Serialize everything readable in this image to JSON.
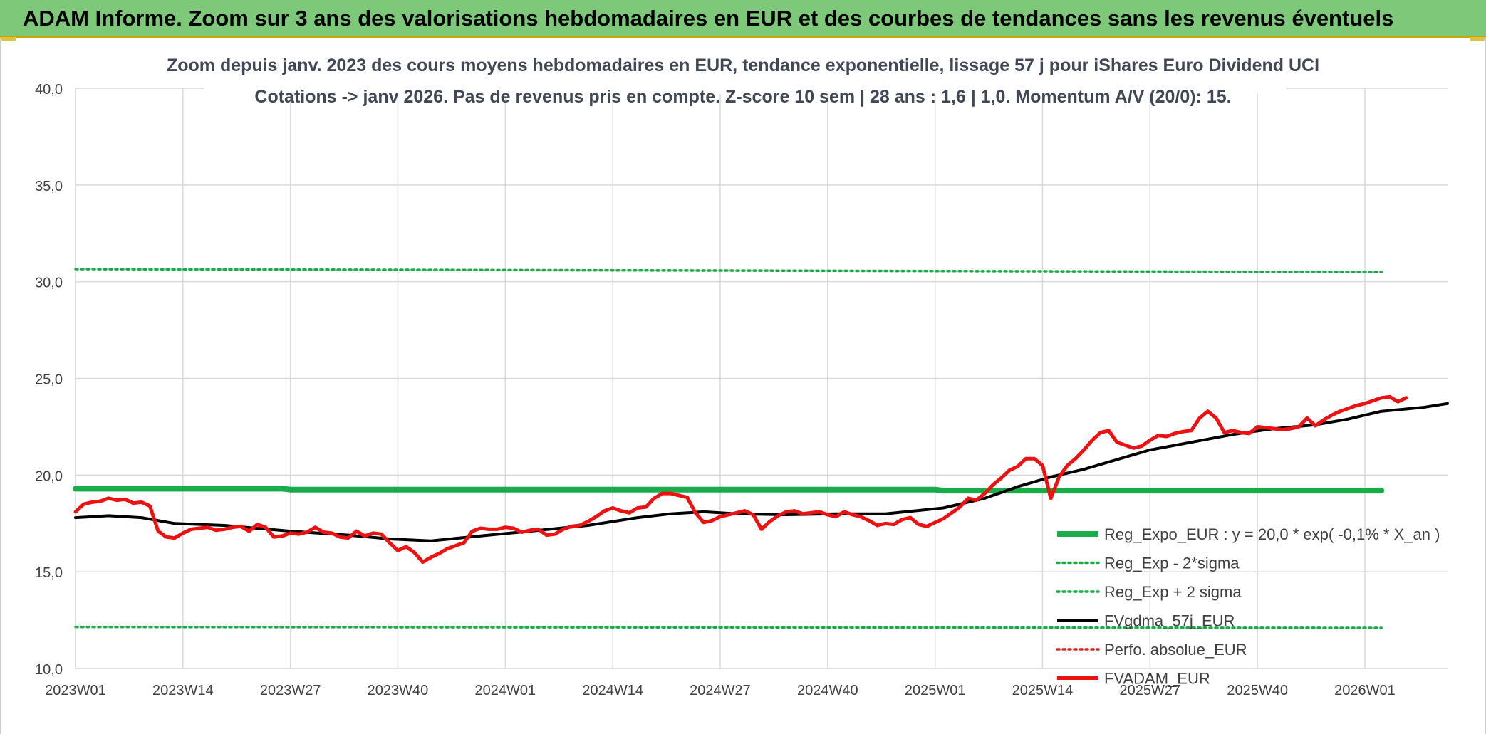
{
  "header": {
    "title": "ADAM Informe. Zoom sur 3 ans des valorisations hebdomadaires en EUR et des courbes de tendances sans les revenus éventuels"
  },
  "chart_data": {
    "type": "line",
    "title": "Zoom depuis janv. 2023 des cours moyens hebdomadaires en EUR, tendance exponentielle, lissage 57 j pour iShares Euro Dividend UCI",
    "subtitle": "Cotations -> janv 2026. Pas de revenus pris en compte. Z-score 10 sem | 28 ans : 1,6 | 1,0. Momentum A/V (20/0): 15.",
    "ylim": [
      10,
      40
    ],
    "yticks": [
      "10,0",
      "15,0",
      "20,0",
      "25,0",
      "30,0",
      "35,0",
      "40,0"
    ],
    "xticks": [
      "2023W01",
      "2023W14",
      "2023W27",
      "2023W40",
      "2024W01",
      "2024W14",
      "2024W27",
      "2024W40",
      "2025W01",
      "2025W14",
      "2025W27",
      "2025W40",
      "2026W01"
    ],
    "grid": true,
    "legend_position": "bottom-right",
    "colors": {
      "reg": "#1aab4a",
      "sigma": "#1aab4a",
      "gdma": "#000000",
      "perf": "#e02020",
      "adam": "#ee1111"
    },
    "series": [
      {
        "name": "Reg_Expo_EUR : y = 20,0 * exp( -0,1% * X_an )",
        "style": "thick",
        "color": "#1aab4a",
        "points": [
          [
            0,
            19.3
          ],
          [
            25,
            19.3
          ],
          [
            26,
            19.25
          ],
          [
            104,
            19.25
          ],
          [
            105,
            19.2
          ],
          [
            158,
            19.2
          ]
        ]
      },
      {
        "name": "Reg_Exp - 2*sigma",
        "style": "dotted",
        "color": "#1aab4a",
        "points": [
          [
            0,
            12.15
          ],
          [
            158,
            12.1
          ]
        ]
      },
      {
        "name": "Reg_Exp + 2 sigma",
        "style": "dotted",
        "color": "#1aab4a",
        "points": [
          [
            0,
            30.65
          ],
          [
            158,
            30.5
          ]
        ]
      },
      {
        "name": "FVgdma_57j_EUR",
        "style": "solid",
        "color": "#000000",
        "points": [
          [
            0,
            17.8
          ],
          [
            4,
            17.9
          ],
          [
            8,
            17.8
          ],
          [
            12,
            17.5
          ],
          [
            18,
            17.4
          ],
          [
            26,
            17.1
          ],
          [
            33,
            16.9
          ],
          [
            38,
            16.7
          ],
          [
            43,
            16.6
          ],
          [
            50,
            16.9
          ],
          [
            55,
            17.1
          ],
          [
            62,
            17.4
          ],
          [
            68,
            17.8
          ],
          [
            72,
            18.0
          ],
          [
            76,
            18.1
          ],
          [
            80,
            18.0
          ],
          [
            86,
            17.95
          ],
          [
            92,
            18.0
          ],
          [
            98,
            18.0
          ],
          [
            105,
            18.3
          ],
          [
            110,
            18.8
          ],
          [
            114,
            19.4
          ],
          [
            118,
            19.9
          ],
          [
            122,
            20.3
          ],
          [
            126,
            20.8
          ],
          [
            130,
            21.3
          ],
          [
            135,
            21.7
          ],
          [
            140,
            22.1
          ],
          [
            145,
            22.4
          ],
          [
            150,
            22.6
          ],
          [
            154,
            22.9
          ],
          [
            158,
            23.3
          ],
          [
            163,
            23.5
          ],
          [
            166,
            23.7
          ]
        ]
      },
      {
        "name": "Perfo. absolue_EUR",
        "style": "dotted",
        "color": "#e02020",
        "points": []
      },
      {
        "name": "FVADAM_EUR",
        "style": "solid",
        "color": "#ee1111",
        "points": [
          [
            0,
            18.1
          ],
          [
            1,
            18.5
          ],
          [
            2,
            18.6
          ],
          [
            3,
            18.65
          ],
          [
            4,
            18.8
          ],
          [
            5,
            18.7
          ],
          [
            6,
            18.75
          ],
          [
            7,
            18.55
          ],
          [
            8,
            18.6
          ],
          [
            9,
            18.4
          ],
          [
            10,
            17.1
          ],
          [
            11,
            16.8
          ],
          [
            12,
            16.75
          ],
          [
            13,
            17.0
          ],
          [
            14,
            17.2
          ],
          [
            15,
            17.25
          ],
          [
            16,
            17.3
          ],
          [
            17,
            17.15
          ],
          [
            18,
            17.2
          ],
          [
            19,
            17.3
          ],
          [
            20,
            17.35
          ],
          [
            21,
            17.1
          ],
          [
            22,
            17.45
          ],
          [
            23,
            17.3
          ],
          [
            24,
            16.8
          ],
          [
            25,
            16.85
          ],
          [
            26,
            17.0
          ],
          [
            27,
            16.95
          ],
          [
            28,
            17.05
          ],
          [
            29,
            17.3
          ],
          [
            30,
            17.05
          ],
          [
            31,
            17.0
          ],
          [
            32,
            16.8
          ],
          [
            33,
            16.75
          ],
          [
            34,
            17.1
          ],
          [
            35,
            16.85
          ],
          [
            36,
            17.0
          ],
          [
            37,
            16.95
          ],
          [
            38,
            16.5
          ],
          [
            39,
            16.1
          ],
          [
            40,
            16.3
          ],
          [
            41,
            16.0
          ],
          [
            42,
            15.5
          ],
          [
            43,
            15.75
          ],
          [
            44,
            15.95
          ],
          [
            45,
            16.2
          ],
          [
            46,
            16.35
          ],
          [
            47,
            16.5
          ],
          [
            48,
            17.1
          ],
          [
            49,
            17.25
          ],
          [
            50,
            17.2
          ],
          [
            51,
            17.2
          ],
          [
            52,
            17.3
          ],
          [
            53,
            17.25
          ],
          [
            54,
            17.05
          ],
          [
            55,
            17.15
          ],
          [
            56,
            17.2
          ],
          [
            57,
            16.9
          ],
          [
            58,
            16.95
          ],
          [
            59,
            17.2
          ],
          [
            60,
            17.35
          ],
          [
            61,
            17.4
          ],
          [
            62,
            17.6
          ],
          [
            63,
            17.85
          ],
          [
            64,
            18.15
          ],
          [
            65,
            18.3
          ],
          [
            66,
            18.15
          ],
          [
            67,
            18.05
          ],
          [
            68,
            18.3
          ],
          [
            69,
            18.35
          ],
          [
            70,
            18.8
          ],
          [
            71,
            19.05
          ],
          [
            72,
            19.05
          ],
          [
            73,
            18.95
          ],
          [
            74,
            18.85
          ],
          [
            75,
            18.05
          ],
          [
            76,
            17.55
          ],
          [
            77,
            17.65
          ],
          [
            78,
            17.85
          ],
          [
            79,
            17.95
          ],
          [
            80,
            18.05
          ],
          [
            81,
            18.15
          ],
          [
            82,
            17.95
          ],
          [
            83,
            17.2
          ],
          [
            84,
            17.6
          ],
          [
            85,
            17.9
          ],
          [
            86,
            18.1
          ],
          [
            87,
            18.15
          ],
          [
            88,
            18.0
          ],
          [
            89,
            18.05
          ],
          [
            90,
            18.1
          ],
          [
            91,
            17.95
          ],
          [
            92,
            17.85
          ],
          [
            93,
            18.1
          ],
          [
            94,
            17.95
          ],
          [
            95,
            17.85
          ],
          [
            96,
            17.65
          ],
          [
            97,
            17.4
          ],
          [
            98,
            17.5
          ],
          [
            99,
            17.45
          ],
          [
            100,
            17.7
          ],
          [
            101,
            17.8
          ],
          [
            102,
            17.45
          ],
          [
            103,
            17.35
          ],
          [
            104,
            17.55
          ],
          [
            105,
            17.75
          ],
          [
            106,
            18.05
          ],
          [
            107,
            18.35
          ],
          [
            108,
            18.8
          ],
          [
            109,
            18.7
          ],
          [
            110,
            19.05
          ],
          [
            111,
            19.5
          ],
          [
            112,
            19.85
          ],
          [
            113,
            20.25
          ],
          [
            114,
            20.45
          ],
          [
            115,
            20.85
          ],
          [
            116,
            20.85
          ],
          [
            117,
            20.5
          ],
          [
            118,
            18.8
          ],
          [
            119,
            19.9
          ],
          [
            120,
            20.5
          ],
          [
            121,
            20.85
          ],
          [
            122,
            21.3
          ],
          [
            123,
            21.8
          ],
          [
            124,
            22.2
          ],
          [
            125,
            22.3
          ],
          [
            126,
            21.7
          ],
          [
            127,
            21.55
          ],
          [
            128,
            21.4
          ],
          [
            129,
            21.5
          ],
          [
            130,
            21.8
          ],
          [
            131,
            22.05
          ],
          [
            132,
            22.0
          ],
          [
            133,
            22.15
          ],
          [
            134,
            22.25
          ],
          [
            135,
            22.3
          ],
          [
            136,
            22.95
          ],
          [
            137,
            23.3
          ],
          [
            138,
            22.95
          ],
          [
            139,
            22.2
          ],
          [
            140,
            22.3
          ],
          [
            141,
            22.2
          ],
          [
            142,
            22.15
          ],
          [
            143,
            22.5
          ],
          [
            144,
            22.45
          ],
          [
            145,
            22.4
          ],
          [
            146,
            22.35
          ],
          [
            147,
            22.4
          ],
          [
            148,
            22.5
          ],
          [
            149,
            22.95
          ],
          [
            150,
            22.55
          ],
          [
            151,
            22.85
          ],
          [
            152,
            23.1
          ],
          [
            153,
            23.3
          ],
          [
            154,
            23.45
          ],
          [
            155,
            23.6
          ],
          [
            156,
            23.7
          ],
          [
            157,
            23.85
          ],
          [
            158,
            24.0
          ],
          [
            159,
            24.05
          ],
          [
            160,
            23.8
          ],
          [
            161,
            24.0
          ]
        ]
      }
    ]
  }
}
